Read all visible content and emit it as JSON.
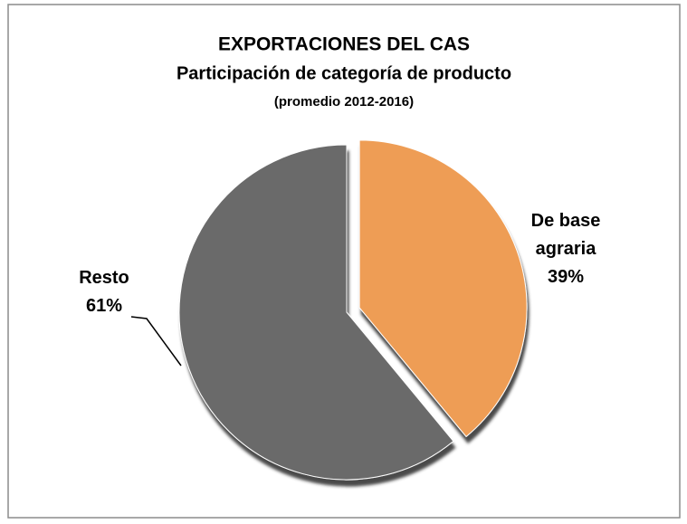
{
  "chart_data": {
    "type": "pie",
    "title": "EXPORTACIONES DEL CAS",
    "subtitle": "Participación de categoría de producto",
    "note": "(promedio 2012-2016)",
    "categories": [
      "De base agraria",
      "Resto"
    ],
    "values": [
      39,
      61
    ],
    "value_labels": [
      "39%",
      "61%"
    ],
    "colors": [
      "#ee9d55",
      "#6b6b6b"
    ]
  }
}
